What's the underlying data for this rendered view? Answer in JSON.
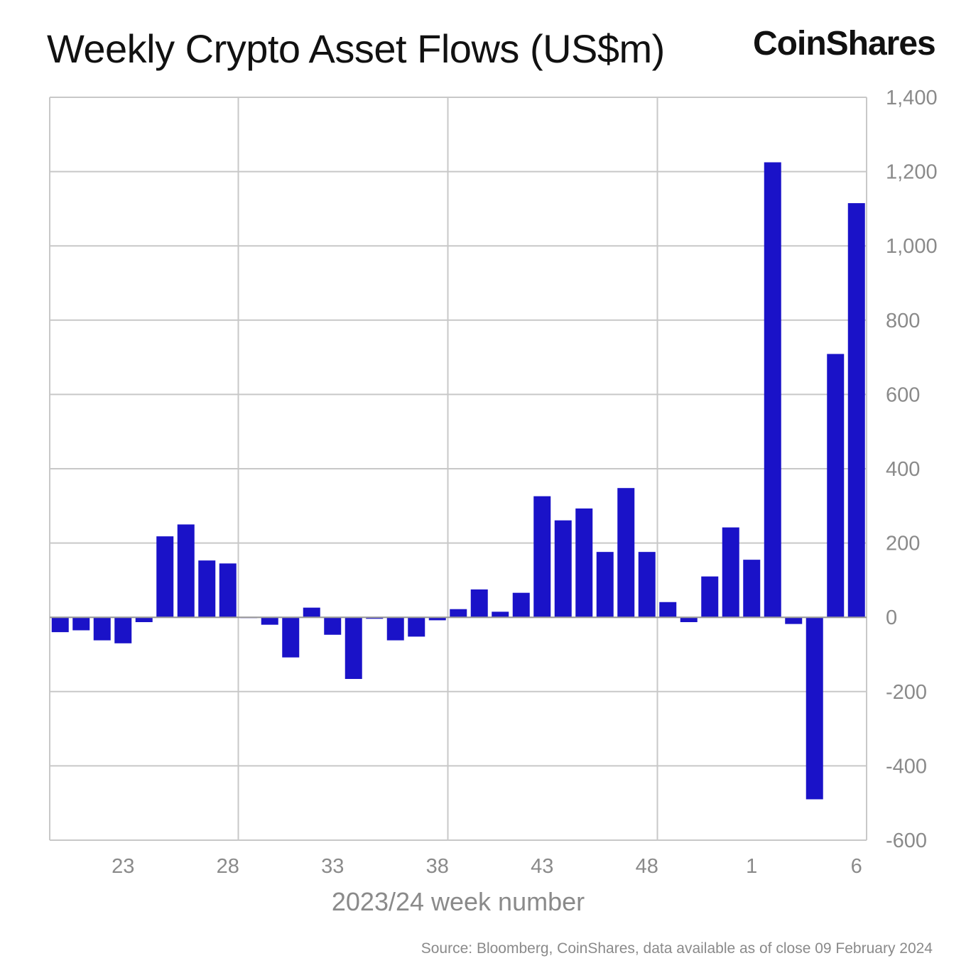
{
  "header": {
    "title": "Weekly Crypto Asset Flows (US$m)",
    "brand": "CoinShares"
  },
  "footer": {
    "source": "Source: Bloomberg, CoinShares, data available as of close 09 February 2024"
  },
  "colors": {
    "bar": "#1a12c8",
    "grid": "#c8c8c8",
    "tick_text": "#8a8a8a",
    "zero_line": "#9a9a9a"
  },
  "chart_data": {
    "type": "bar",
    "title": "Weekly Crypto Asset Flows (US$m)",
    "xlabel": "2023/24 week number",
    "ylabel": "",
    "ylim": [
      -600,
      1400
    ],
    "yticks": [
      1400,
      1200,
      1000,
      800,
      600,
      400,
      200,
      0,
      -200,
      -400,
      -600
    ],
    "ytick_labels": [
      "1,400",
      "1,200",
      "1,000",
      "800",
      "600",
      "400",
      "200",
      "0",
      "-200",
      "-400",
      "-600"
    ],
    "xtick_labels": [
      "23",
      "28",
      "33",
      "38",
      "43",
      "48",
      "1",
      "6"
    ],
    "xtick_categories": [
      "23",
      "28",
      "33",
      "38",
      "43",
      "48",
      "1",
      "6"
    ],
    "grid": true,
    "y_axis_position": "right",
    "categories": [
      "20",
      "21",
      "22",
      "23",
      "24",
      "25",
      "26",
      "27",
      "28",
      "29",
      "30",
      "31",
      "32",
      "33",
      "34",
      "35",
      "36",
      "37",
      "38",
      "39",
      "40",
      "41",
      "42",
      "43",
      "44",
      "45",
      "46",
      "47",
      "48",
      "49",
      "50",
      "51",
      "52",
      "1",
      "2",
      "3",
      "4",
      "5",
      "6"
    ],
    "values": [
      -40,
      -35,
      -62,
      -70,
      -13,
      218,
      250,
      153,
      145,
      -2,
      -20,
      -108,
      26,
      -47,
      -166,
      -4,
      -62,
      -52,
      -8,
      22,
      75,
      15,
      66,
      326,
      261,
      293,
      176,
      348,
      176,
      41,
      -13,
      110,
      242,
      155,
      1225,
      -18,
      -490,
      709,
      1115
    ]
  }
}
